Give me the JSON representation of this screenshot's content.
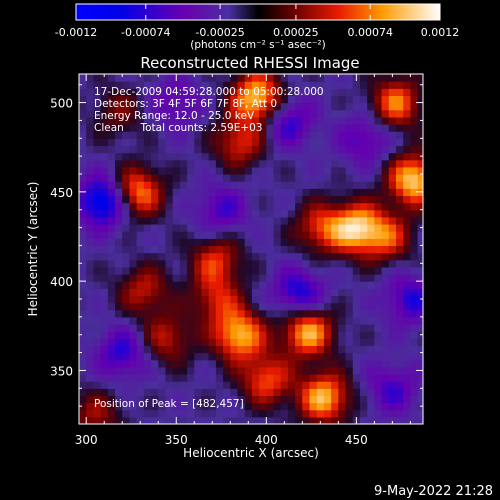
{
  "chart_data": {
    "type": "heatmap",
    "title": "Reconstructed RHESSI Image",
    "xlabel": "Heliocentric X (arcsec)",
    "ylabel": "Heliocentric Y (arcsec)",
    "xlim": [
      296,
      487
    ],
    "ylim": [
      320,
      516
    ],
    "x_ticks": [
      300,
      350,
      400,
      450
    ],
    "y_ticks": [
      350,
      400,
      450,
      500
    ],
    "colorbar": {
      "range": [
        -0.0012,
        0.0012
      ],
      "ticks": [
        "-0.0012",
        "-0.00074",
        "-0.00025",
        "0.00025",
        "0.00074",
        "0.0012"
      ],
      "unit_label": "(photons cm⁻² s⁻¹ asec⁻²)"
    },
    "info_lines": [
      "17-Dec-2009 04:59:28.000 to 05:00:28.000",
      "Detectors: 3F 4F 5F 6F 7F 8F, Att 0",
      "Energy Range: 12.0 - 25.0 keV",
      "Clean     Total counts: 2.59E+03"
    ],
    "peak_label": "Position of Peak = [482,457]",
    "peak": [
      482,
      457
    ],
    "grid": false,
    "hot_sources": [
      {
        "x": 395,
        "y": 503,
        "flux": 0.0012
      },
      {
        "x": 472,
        "y": 500,
        "flux": 0.0009
      },
      {
        "x": 482,
        "y": 457,
        "flux": 0.0012
      },
      {
        "x": 328,
        "y": 450,
        "flux": 0.001
      },
      {
        "x": 372,
        "y": 390,
        "flux": 0.0006
      },
      {
        "x": 430,
        "y": 430,
        "flux": 0.0007
      },
      {
        "x": 450,
        "y": 430,
        "flux": 0.0011
      },
      {
        "x": 467,
        "y": 425,
        "flux": 0.0007
      },
      {
        "x": 372,
        "y": 412,
        "flux": 0.0007
      },
      {
        "x": 332,
        "y": 395,
        "flux": 0.0006
      },
      {
        "x": 385,
        "y": 370,
        "flux": 0.0011
      },
      {
        "x": 423,
        "y": 372,
        "flux": 0.0011
      },
      {
        "x": 345,
        "y": 368,
        "flux": 0.0006
      },
      {
        "x": 400,
        "y": 345,
        "flux": 0.0008
      },
      {
        "x": 432,
        "y": 335,
        "flux": 0.0011
      },
      {
        "x": 385,
        "y": 478,
        "flux": 0.0007
      },
      {
        "x": 318,
        "y": 495,
        "flux": 0.0004
      },
      {
        "x": 305,
        "y": 325,
        "flux": 0.0005
      }
    ],
    "cold_sources": [
      {
        "x": 310,
        "y": 445,
        "flux": -0.001
      },
      {
        "x": 412,
        "y": 490,
        "flux": -0.0006
      },
      {
        "x": 418,
        "y": 393,
        "flux": -0.0007
      },
      {
        "x": 480,
        "y": 390,
        "flux": -0.0006
      },
      {
        "x": 320,
        "y": 360,
        "flux": -0.0006
      },
      {
        "x": 375,
        "y": 440,
        "flux": -0.0005
      },
      {
        "x": 455,
        "y": 480,
        "flux": -0.0005
      },
      {
        "x": 470,
        "y": 340,
        "flux": -0.0005
      },
      {
        "x": 350,
        "y": 500,
        "flux": -0.0004
      }
    ]
  },
  "footer": {
    "timestamp": "9-May-2022 21:28"
  },
  "colors": {
    "background": "#000000",
    "foreground": "#ffffff"
  }
}
